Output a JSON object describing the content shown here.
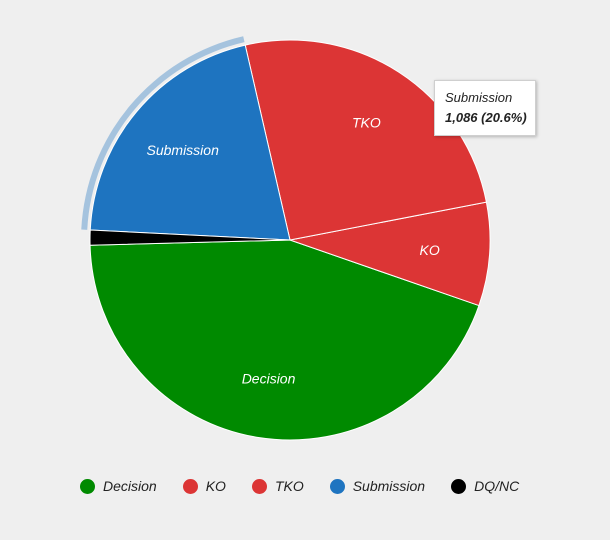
{
  "chart_data": {
    "type": "pie",
    "categories": [
      "Decision",
      "KO",
      "TKO",
      "Submission",
      "DQ/NC"
    ],
    "values": [
      2333,
      440,
      1347,
      1086,
      64
    ],
    "colors": [
      "#008a00",
      "#dc3535",
      "#dc3535",
      "#1e74c0",
      "#000000"
    ],
    "slice_labels": [
      "Decision",
      "KO",
      "TKO",
      "Submission",
      ""
    ],
    "legend_position": "bottom",
    "highlighted": "Submission"
  },
  "tooltip": {
    "name": "Submission",
    "value": "1,086 (20.6%)"
  },
  "legend": {
    "items": [
      {
        "label": "Decision",
        "color": "#008a00"
      },
      {
        "label": "KO",
        "color": "#dc3535"
      },
      {
        "label": "TKO",
        "color": "#dc3535"
      },
      {
        "label": "Submission",
        "color": "#1e74c0"
      },
      {
        "label": "DQ/NC",
        "color": "#000000"
      }
    ]
  }
}
